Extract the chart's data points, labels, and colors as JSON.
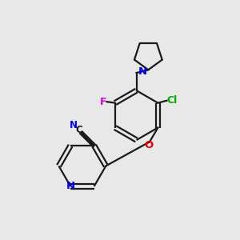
{
  "background_color": "#e8e8e8",
  "bond_color": "#1a1a1a",
  "atom_colors": {
    "N": "#0000ee",
    "O": "#ee0000",
    "F": "#dd00dd",
    "Cl": "#00aa00",
    "C": "#1a1a1a"
  },
  "figsize": [
    3.0,
    3.0
  ],
  "dpi": 100
}
